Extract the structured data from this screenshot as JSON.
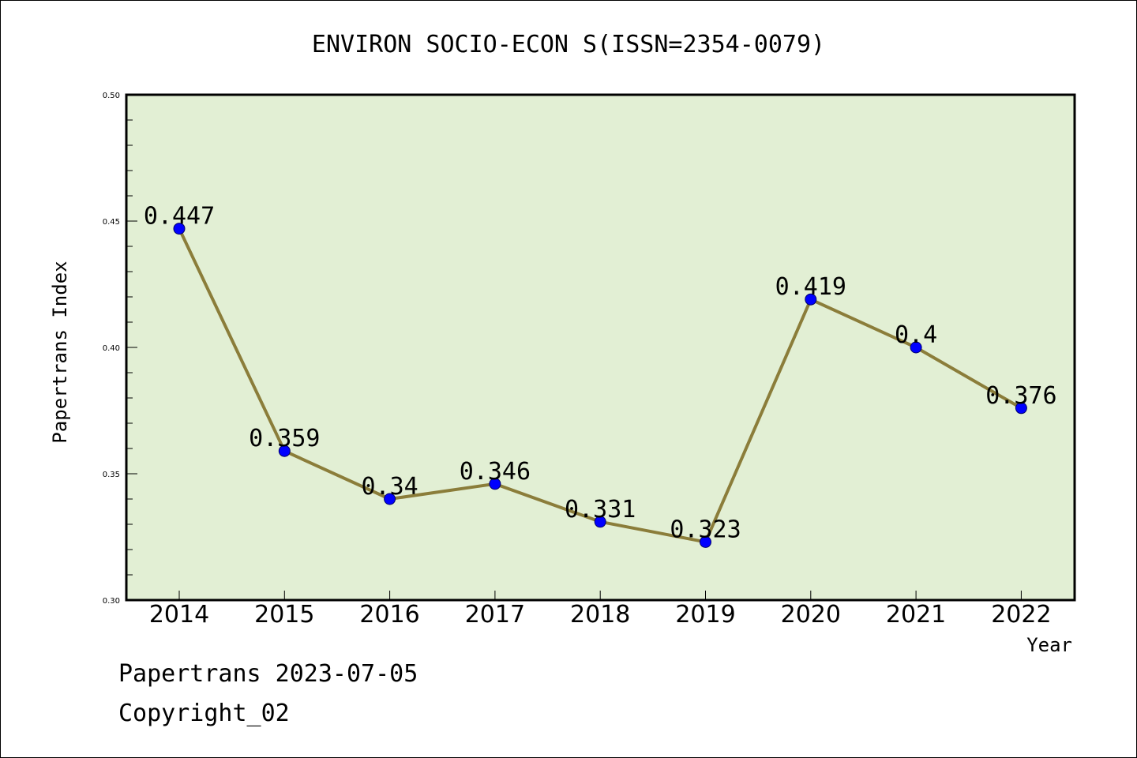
{
  "chart_data": {
    "type": "line",
    "title": "ENVIRON SOCIO-ECON S(ISSN=2354-0079)",
    "xlabel": "Year",
    "ylabel": "Papertrans Index",
    "x": [
      "2014",
      "2015",
      "2016",
      "2017",
      "2018",
      "2019",
      "2020",
      "2021",
      "2022"
    ],
    "y": [
      0.447,
      0.359,
      0.34,
      0.346,
      0.331,
      0.323,
      0.419,
      0.4,
      0.376
    ],
    "point_labels": [
      "0.447",
      "0.359",
      "0.34",
      "0.346",
      "0.331",
      "0.323",
      "0.419",
      "0.4",
      "0.376"
    ],
    "ylim": [
      0.3,
      0.5
    ],
    "yticks": [
      "0.30",
      "0.35",
      "0.40",
      "0.45",
      "0.50"
    ],
    "grid": false,
    "legend": "none",
    "colors": {
      "plot_background": "#e2efd4",
      "line": "#8b7d3a",
      "marker": "#0000ff"
    }
  },
  "footer": {
    "line1": "Papertrans 2023-07-05",
    "line2": "Copyright_02"
  }
}
